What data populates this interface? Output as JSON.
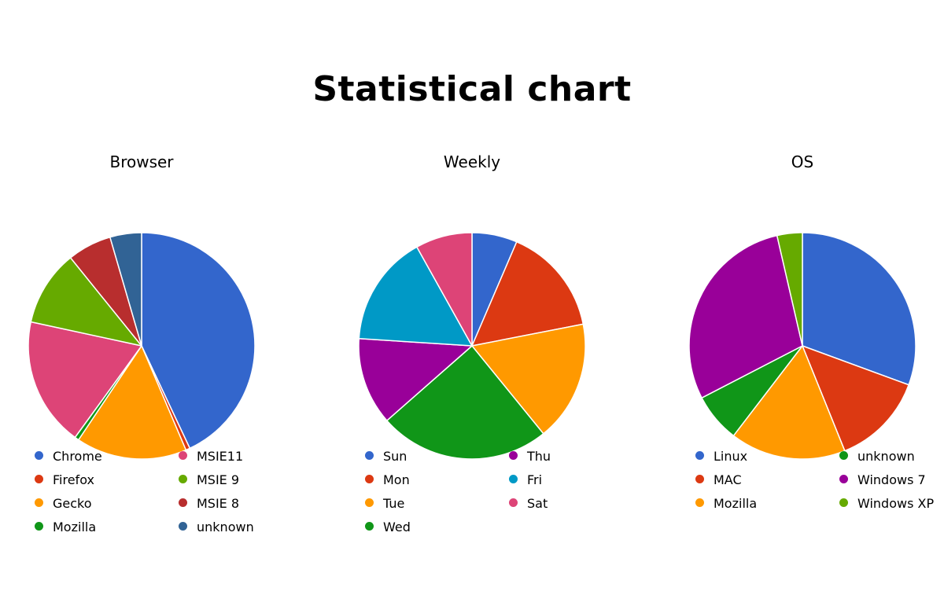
{
  "page": {
    "title": "Statistical chart"
  },
  "chart_data": [
    {
      "type": "pie",
      "title": "Browser",
      "legend_position": "bottom",
      "slices": [
        {
          "label": "Chrome",
          "value": 43.0,
          "color": "#3366cc"
        },
        {
          "label": "Firefox",
          "value": 0.6,
          "color": "#dc3912"
        },
        {
          "label": "Gecko",
          "value": 15.8,
          "color": "#ff9900"
        },
        {
          "label": "Mozilla",
          "value": 0.6,
          "color": "#109618"
        },
        {
          "label": "MSIE11",
          "value": 18.4,
          "color": "#dd4477"
        },
        {
          "label": "MSIE 9",
          "value": 10.8,
          "color": "#66aa00"
        },
        {
          "label": "MSIE 8",
          "value": 6.3,
          "color": "#b82e2e"
        },
        {
          "label": "unknown",
          "value": 4.5,
          "color": "#316395"
        }
      ]
    },
    {
      "type": "pie",
      "title": "Weekly",
      "legend_position": "bottom",
      "slices": [
        {
          "label": "Sun",
          "value": 6.3,
          "color": "#3366cc"
        },
        {
          "label": "Mon",
          "value": 15.1,
          "color": "#dc3912"
        },
        {
          "label": "Tue",
          "value": 16.8,
          "color": "#ff9900"
        },
        {
          "label": "Wed",
          "value": 23.8,
          "color": "#109618"
        },
        {
          "label": "Thu",
          "value": 12.2,
          "color": "#990099"
        },
        {
          "label": "Fri",
          "value": 15.5,
          "color": "#0099c6"
        },
        {
          "label": "Sat",
          "value": 7.9,
          "color": "#dd4477"
        }
      ]
    },
    {
      "type": "pie",
      "title": "OS",
      "legend_position": "bottom",
      "slices": [
        {
          "label": "Linux",
          "value": 30.6,
          "color": "#3366cc"
        },
        {
          "label": "MAC",
          "value": 13.3,
          "color": "#dc3912"
        },
        {
          "label": "Mozilla",
          "value": 16.5,
          "color": "#ff9900"
        },
        {
          "label": "unknown",
          "value": 7.0,
          "color": "#109618"
        },
        {
          "label": "Windows 7",
          "value": 29.0,
          "color": "#990099"
        },
        {
          "label": "Windows XP",
          "value": 3.6,
          "color": "#66aa00"
        }
      ]
    }
  ]
}
